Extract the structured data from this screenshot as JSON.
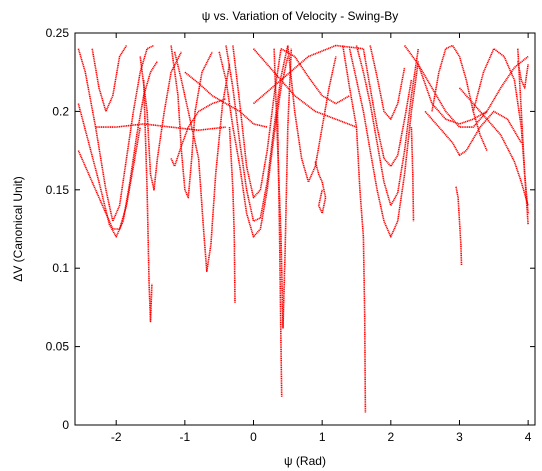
{
  "chart_data": {
    "type": "scatter",
    "title": "ψ vs. Variation of Velocity  - Swing-By",
    "xlabel": "ψ (Rad)",
    "ylabel": "ΔV (Canonical Unit)",
    "xlim": [
      -2.6,
      4.1
    ],
    "ylim": [
      0,
      0.25
    ],
    "xticks": [
      -2,
      -1,
      0,
      1,
      2,
      3,
      4
    ],
    "xtick_labels": [
      "-2",
      "-1",
      "0",
      "1",
      "2",
      "3",
      "4"
    ],
    "yticks": [
      0,
      0.05,
      0.1,
      0.15,
      0.2,
      0.25
    ],
    "ytick_labels": [
      "0",
      "0.05",
      "0.1",
      "0.15",
      "0.2",
      "0.25"
    ],
    "grid": false,
    "legend": "none",
    "series_color": "#ff0000",
    "series": [
      {
        "points": [
          [
            -2.55,
            0.24
          ],
          [
            -2.45,
            0.225
          ],
          [
            -2.3,
            0.19
          ],
          [
            -2.15,
            0.15
          ],
          [
            -2.05,
            0.13
          ],
          [
            -1.95,
            0.14
          ],
          [
            -1.85,
            0.17
          ],
          [
            -1.75,
            0.2
          ],
          [
            -1.65,
            0.225
          ],
          [
            -1.55,
            0.24
          ],
          [
            -1.45,
            0.242
          ]
        ]
      },
      {
        "points": [
          [
            -2.55,
            0.205
          ],
          [
            -2.4,
            0.18
          ],
          [
            -2.25,
            0.155
          ],
          [
            -2.1,
            0.128
          ],
          [
            -2.0,
            0.12
          ],
          [
            -1.9,
            0.13
          ],
          [
            -1.8,
            0.155
          ],
          [
            -1.7,
            0.185
          ],
          [
            -1.6,
            0.21
          ],
          [
            -1.5,
            0.225
          ],
          [
            -1.4,
            0.232
          ]
        ]
      },
      {
        "points": [
          [
            -2.55,
            0.175
          ],
          [
            -2.4,
            0.16
          ],
          [
            -2.2,
            0.14
          ],
          [
            -2.05,
            0.125
          ],
          [
            -1.95,
            0.125
          ],
          [
            -1.85,
            0.14
          ],
          [
            -1.75,
            0.165
          ],
          [
            -1.65,
            0.19
          ]
        ]
      },
      {
        "points": [
          [
            -2.35,
            0.24
          ],
          [
            -2.25,
            0.215
          ],
          [
            -2.15,
            0.2
          ],
          [
            -2.05,
            0.21
          ],
          [
            -1.95,
            0.235
          ],
          [
            -1.85,
            0.242
          ]
        ]
      },
      {
        "points": [
          [
            -1.65,
            0.235
          ],
          [
            -1.55,
            0.2
          ],
          [
            -1.5,
            0.16
          ],
          [
            -1.45,
            0.15
          ],
          [
            -1.4,
            0.17
          ],
          [
            -1.3,
            0.2
          ],
          [
            -1.2,
            0.225
          ],
          [
            -1.05,
            0.238
          ]
        ]
      },
      {
        "points": [
          [
            -1.6,
            0.22
          ],
          [
            -1.55,
            0.15
          ],
          [
            -1.52,
            0.09
          ],
          [
            -1.5,
            0.066
          ],
          [
            -1.48,
            0.09
          ]
        ]
      },
      {
        "points": [
          [
            -1.2,
            0.242
          ],
          [
            -1.1,
            0.21
          ],
          [
            -1.05,
            0.175
          ],
          [
            -1.0,
            0.15
          ],
          [
            -0.95,
            0.145
          ],
          [
            -0.9,
            0.17
          ],
          [
            -0.85,
            0.2
          ],
          [
            -0.75,
            0.225
          ],
          [
            -0.6,
            0.238
          ]
        ]
      },
      {
        "points": [
          [
            -1.15,
            0.238
          ],
          [
            -1.05,
            0.22
          ],
          [
            -0.95,
            0.2
          ],
          [
            -0.8,
            0.17
          ],
          [
            -0.72,
            0.12
          ],
          [
            -0.68,
            0.098
          ],
          [
            -0.62,
            0.115
          ],
          [
            -0.55,
            0.16
          ],
          [
            -0.45,
            0.205
          ],
          [
            -0.35,
            0.23
          ]
        ]
      },
      {
        "points": [
          [
            -1.2,
            0.17
          ],
          [
            -1.15,
            0.165
          ],
          [
            -1.05,
            0.178
          ],
          [
            -0.95,
            0.19
          ],
          [
            -0.8,
            0.2
          ],
          [
            -0.6,
            0.205
          ],
          [
            -0.4,
            0.208
          ]
        ]
      },
      {
        "points": [
          [
            -1.0,
            0.225
          ],
          [
            -0.8,
            0.218
          ],
          [
            -0.6,
            0.21
          ],
          [
            -0.4,
            0.205
          ],
          [
            -0.2,
            0.2
          ],
          [
            0.0,
            0.192
          ],
          [
            0.2,
            0.19
          ]
        ]
      },
      {
        "points": [
          [
            -2.3,
            0.19
          ],
          [
            -2.0,
            0.19
          ],
          [
            -1.6,
            0.192
          ],
          [
            -1.2,
            0.19
          ],
          [
            -0.8,
            0.188
          ],
          [
            -0.4,
            0.19
          ]
        ]
      },
      {
        "points": [
          [
            -0.5,
            0.238
          ],
          [
            -0.4,
            0.22
          ],
          [
            -0.3,
            0.19
          ],
          [
            -0.2,
            0.165
          ],
          [
            -0.1,
            0.135
          ],
          [
            0.0,
            0.12
          ],
          [
            0.1,
            0.125
          ],
          [
            0.2,
            0.15
          ],
          [
            0.3,
            0.185
          ],
          [
            0.4,
            0.215
          ],
          [
            0.5,
            0.235
          ]
        ]
      },
      {
        "points": [
          [
            -0.4,
            0.242
          ],
          [
            -0.3,
            0.215
          ],
          [
            -0.2,
            0.18
          ],
          [
            -0.1,
            0.15
          ],
          [
            0.0,
            0.13
          ],
          [
            0.1,
            0.132
          ],
          [
            0.2,
            0.155
          ],
          [
            0.3,
            0.19
          ],
          [
            0.4,
            0.222
          ],
          [
            0.5,
            0.242
          ]
        ]
      },
      {
        "points": [
          [
            -0.3,
            0.242
          ],
          [
            -0.2,
            0.205
          ],
          [
            -0.1,
            0.165
          ],
          [
            0.0,
            0.145
          ],
          [
            0.1,
            0.15
          ],
          [
            0.2,
            0.175
          ],
          [
            0.3,
            0.21
          ],
          [
            0.4,
            0.24
          ]
        ]
      },
      {
        "points": [
          [
            -0.35,
            0.19
          ],
          [
            -0.3,
            0.15
          ],
          [
            -0.28,
            0.12
          ],
          [
            -0.27,
            0.078
          ]
        ]
      },
      {
        "points": [
          [
            0.3,
            0.24
          ],
          [
            0.35,
            0.18
          ],
          [
            0.4,
            0.12
          ],
          [
            0.43,
            0.062
          ],
          [
            0.46,
            0.11
          ],
          [
            0.5,
            0.19
          ],
          [
            0.55,
            0.24
          ]
        ]
      },
      {
        "points": [
          [
            0.35,
            0.2
          ],
          [
            0.38,
            0.12
          ],
          [
            0.4,
            0.05
          ],
          [
            0.41,
            0.018
          ]
        ]
      },
      {
        "points": [
          [
            0.5,
            0.242
          ],
          [
            0.6,
            0.2
          ],
          [
            0.7,
            0.17
          ],
          [
            0.8,
            0.155
          ],
          [
            0.9,
            0.165
          ],
          [
            1.0,
            0.19
          ],
          [
            1.1,
            0.215
          ],
          [
            1.2,
            0.235
          ]
        ]
      },
      {
        "points": [
          [
            0.4,
            0.24
          ],
          [
            0.6,
            0.235
          ],
          [
            0.8,
            0.222
          ],
          [
            1.0,
            0.21
          ],
          [
            1.2,
            0.205
          ],
          [
            1.4,
            0.21
          ]
        ]
      },
      {
        "points": [
          [
            0.0,
            0.205
          ],
          [
            0.4,
            0.22
          ],
          [
            0.8,
            0.235
          ],
          [
            1.2,
            0.242
          ],
          [
            1.6,
            0.24
          ]
        ]
      },
      {
        "points": [
          [
            0.0,
            0.24
          ],
          [
            0.3,
            0.225
          ],
          [
            0.6,
            0.21
          ],
          [
            0.9,
            0.2
          ],
          [
            1.2,
            0.195
          ],
          [
            1.5,
            0.19
          ]
        ]
      },
      {
        "points": [
          [
            0.9,
            0.168
          ],
          [
            0.95,
            0.16
          ],
          [
            1.0,
            0.155
          ],
          [
            1.05,
            0.145
          ],
          [
            1.0,
            0.135
          ],
          [
            0.95,
            0.14
          ],
          [
            1.0,
            0.15
          ]
        ]
      },
      {
        "points": [
          [
            1.3,
            0.242
          ],
          [
            1.4,
            0.215
          ],
          [
            1.5,
            0.19
          ],
          [
            1.55,
            0.15
          ],
          [
            1.6,
            0.12
          ],
          [
            1.62,
            0.07
          ],
          [
            1.63,
            0.008
          ]
        ]
      },
      {
        "points": [
          [
            1.4,
            0.24
          ],
          [
            1.5,
            0.22
          ],
          [
            1.6,
            0.2
          ],
          [
            1.7,
            0.175
          ],
          [
            1.8,
            0.15
          ],
          [
            1.9,
            0.13
          ],
          [
            2.0,
            0.12
          ],
          [
            2.1,
            0.13
          ],
          [
            2.2,
            0.16
          ],
          [
            2.3,
            0.2
          ],
          [
            2.4,
            0.232
          ]
        ]
      },
      {
        "points": [
          [
            1.5,
            0.242
          ],
          [
            1.6,
            0.225
          ],
          [
            1.7,
            0.205
          ],
          [
            1.8,
            0.18
          ],
          [
            1.9,
            0.155
          ],
          [
            2.0,
            0.14
          ],
          [
            2.1,
            0.148
          ],
          [
            2.2,
            0.175
          ],
          [
            2.3,
            0.21
          ],
          [
            2.4,
            0.24
          ]
        ]
      },
      {
        "points": [
          [
            1.6,
            0.24
          ],
          [
            1.7,
            0.215
          ],
          [
            1.8,
            0.19
          ],
          [
            1.9,
            0.17
          ],
          [
            2.0,
            0.165
          ],
          [
            2.1,
            0.172
          ],
          [
            2.2,
            0.195
          ],
          [
            2.3,
            0.22
          ]
        ]
      },
      {
        "points": [
          [
            1.7,
            0.242
          ],
          [
            1.8,
            0.222
          ],
          [
            1.9,
            0.2
          ],
          [
            2.0,
            0.195
          ],
          [
            2.1,
            0.205
          ],
          [
            2.2,
            0.228
          ]
        ]
      },
      {
        "points": [
          [
            2.3,
            0.19
          ],
          [
            2.32,
            0.16
          ],
          [
            2.33,
            0.13
          ]
        ]
      },
      {
        "points": [
          [
            2.4,
            0.23
          ],
          [
            2.6,
            0.205
          ],
          [
            2.8,
            0.195
          ],
          [
            3.0,
            0.192
          ],
          [
            3.2,
            0.195
          ],
          [
            3.4,
            0.2
          ]
        ]
      },
      {
        "points": [
          [
            2.5,
            0.2
          ],
          [
            2.7,
            0.19
          ],
          [
            2.9,
            0.18
          ],
          [
            3.0,
            0.172
          ],
          [
            3.1,
            0.175
          ],
          [
            3.3,
            0.19
          ],
          [
            3.5,
            0.2
          ],
          [
            3.7,
            0.195
          ],
          [
            3.9,
            0.18
          ]
        ]
      },
      {
        "points": [
          [
            2.2,
            0.242
          ],
          [
            2.4,
            0.23
          ],
          [
            2.6,
            0.215
          ],
          [
            2.8,
            0.2
          ],
          [
            3.0,
            0.19
          ],
          [
            3.2,
            0.19
          ],
          [
            3.4,
            0.2
          ],
          [
            3.6,
            0.215
          ],
          [
            3.8,
            0.228
          ],
          [
            4.0,
            0.235
          ]
        ]
      },
      {
        "points": [
          [
            2.6,
            0.2
          ],
          [
            2.7,
            0.225
          ],
          [
            2.8,
            0.24
          ],
          [
            2.9,
            0.242
          ],
          [
            3.0,
            0.235
          ],
          [
            3.1,
            0.22
          ],
          [
            3.2,
            0.2
          ],
          [
            3.3,
            0.185
          ],
          [
            3.4,
            0.175
          ]
        ]
      },
      {
        "points": [
          [
            3.2,
            0.2
          ],
          [
            3.35,
            0.225
          ],
          [
            3.5,
            0.24
          ],
          [
            3.65,
            0.235
          ],
          [
            3.8,
            0.22
          ],
          [
            3.9,
            0.19
          ],
          [
            3.95,
            0.16
          ],
          [
            4.0,
            0.135
          ]
        ]
      },
      {
        "points": [
          [
            3.0,
            0.215
          ],
          [
            3.3,
            0.2
          ],
          [
            3.6,
            0.185
          ],
          [
            3.8,
            0.168
          ],
          [
            3.9,
            0.155
          ],
          [
            4.0,
            0.14
          ]
        ]
      },
      {
        "points": [
          [
            3.85,
            0.24
          ],
          [
            3.9,
            0.2
          ],
          [
            3.95,
            0.16
          ],
          [
            4.0,
            0.128
          ]
        ]
      },
      {
        "points": [
          [
            2.95,
            0.152
          ],
          [
            2.98,
            0.145
          ],
          [
            3.0,
            0.13
          ],
          [
            3.02,
            0.115
          ],
          [
            3.03,
            0.102
          ]
        ]
      },
      {
        "points": [
          [
            3.85,
            0.232
          ],
          [
            3.9,
            0.22
          ],
          [
            3.95,
            0.215
          ],
          [
            4.0,
            0.23
          ]
        ]
      }
    ]
  }
}
